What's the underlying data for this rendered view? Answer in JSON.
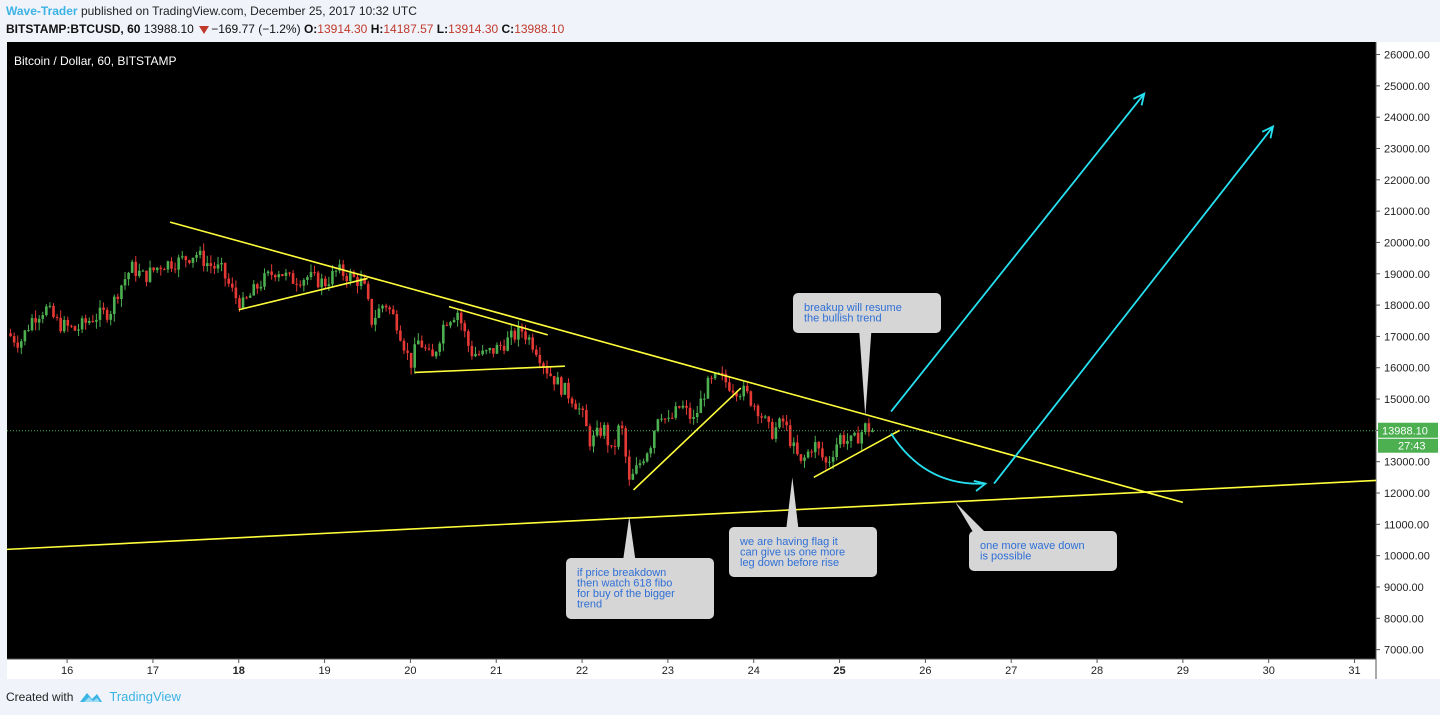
{
  "header": {
    "author": "Wave-Trader",
    "published_text": "published on TradingView.com, December 25, 2017 10:32 UTC",
    "symbol": "BITSTAMP:BTCUSD, 60",
    "last": "13988.10",
    "change": "−169.77 (−1.2%)",
    "o_label": "O:",
    "o_value": "13914.30",
    "h_label": "H:",
    "h_value": "14187.57",
    "l_label": "L:",
    "l_value": "13914.30",
    "c_label": "C:",
    "c_value": "13988.10"
  },
  "footer": {
    "created_with": "Created with",
    "brand": "TradingView"
  },
  "colors": {
    "background": "#000000",
    "bull": "#4caf50",
    "bear": "#e53935",
    "trendline": "#ffff3b",
    "projection": "#26e0f0",
    "price_line": "#4caf50",
    "callout_bg": "#d6d6d6",
    "callout_text": "#2f6fd6"
  },
  "chart_data": {
    "type": "candlestick",
    "title": "Bitcoin / Dollar, 60, BITSTAMP",
    "interval": "60",
    "ylim": [
      6700,
      26400
    ],
    "y_ticks": [
      "26000.00",
      "25000.00",
      "24000.00",
      "23000.00",
      "22000.00",
      "21000.00",
      "20000.00",
      "19000.00",
      "18000.00",
      "17000.00",
      "16000.00",
      "15000.00",
      "14000.00",
      "13000.00",
      "12000.00",
      "11000.00",
      "10000.00",
      "9000.00",
      "8000.00",
      "7000.00"
    ],
    "x_range_days": [
      15.3,
      31.25
    ],
    "x_ticks": [
      {
        "day": 16,
        "label": "16",
        "bold": false
      },
      {
        "day": 17,
        "label": "17",
        "bold": false
      },
      {
        "day": 18,
        "label": "18",
        "bold": true
      },
      {
        "day": 19,
        "label": "19",
        "bold": false
      },
      {
        "day": 20,
        "label": "20",
        "bold": false
      },
      {
        "day": 21,
        "label": "21",
        "bold": false
      },
      {
        "day": 22,
        "label": "22",
        "bold": false
      },
      {
        "day": 23,
        "label": "23",
        "bold": false
      },
      {
        "day": 24,
        "label": "24",
        "bold": false
      },
      {
        "day": 25,
        "label": "25",
        "bold": true
      },
      {
        "day": 26,
        "label": "26",
        "bold": false
      },
      {
        "day": 27,
        "label": "27",
        "bold": false
      },
      {
        "day": 28,
        "label": "28",
        "bold": false
      },
      {
        "day": 29,
        "label": "29",
        "bold": false
      },
      {
        "day": 30,
        "label": "30",
        "bold": false
      },
      {
        "day": 31,
        "label": "31",
        "bold": false
      }
    ],
    "last_price": 13988.1,
    "last_price_label": "13988.10",
    "countdown_label": "27:43",
    "price_path": [
      [
        15.3,
        17100
      ],
      [
        15.45,
        16800
      ],
      [
        15.6,
        17600
      ],
      [
        15.75,
        17900
      ],
      [
        15.9,
        17400
      ],
      [
        16.1,
        17200
      ],
      [
        16.3,
        17600
      ],
      [
        16.5,
        17800
      ],
      [
        16.6,
        18500
      ],
      [
        16.75,
        19200
      ],
      [
        16.9,
        18900
      ],
      [
        17.1,
        19300
      ],
      [
        17.3,
        19400
      ],
      [
        17.5,
        19650
      ],
      [
        17.65,
        19300
      ],
      [
        17.8,
        19100
      ],
      [
        17.95,
        18300
      ],
      [
        18.05,
        18000
      ],
      [
        18.25,
        18700
      ],
      [
        18.45,
        19150
      ],
      [
        18.6,
        18800
      ],
      [
        18.8,
        18900
      ],
      [
        19.0,
        18700
      ],
      [
        19.15,
        19100
      ],
      [
        19.3,
        18900
      ],
      [
        19.45,
        18700
      ],
      [
        19.55,
        17500
      ],
      [
        19.7,
        18100
      ],
      [
        19.85,
        17400
      ],
      [
        20.0,
        16100
      ],
      [
        20.1,
        16900
      ],
      [
        20.25,
        16200
      ],
      [
        20.4,
        17500
      ],
      [
        20.55,
        17800
      ],
      [
        20.7,
        16500
      ],
      [
        20.85,
        16400
      ],
      [
        21.0,
        16600
      ],
      [
        21.15,
        16900
      ],
      [
        21.3,
        17200
      ],
      [
        21.45,
        16700
      ],
      [
        21.6,
        15900
      ],
      [
        21.75,
        15400
      ],
      [
        21.9,
        15000
      ],
      [
        22.0,
        14500
      ],
      [
        22.1,
        13600
      ],
      [
        22.25,
        14100
      ],
      [
        22.35,
        13200
      ],
      [
        22.45,
        14300
      ],
      [
        22.55,
        12300
      ],
      [
        22.7,
        13100
      ],
      [
        22.8,
        13600
      ],
      [
        22.9,
        14700
      ],
      [
        23.0,
        14200
      ],
      [
        23.15,
        14800
      ],
      [
        23.3,
        14300
      ],
      [
        23.45,
        15400
      ],
      [
        23.6,
        15700
      ],
      [
        23.75,
        15400
      ],
      [
        23.9,
        15200
      ],
      [
        24.05,
        14700
      ],
      [
        24.2,
        13900
      ],
      [
        24.35,
        14300
      ],
      [
        24.45,
        13500
      ],
      [
        24.55,
        12900
      ],
      [
        24.7,
        13600
      ],
      [
        24.85,
        12900
      ],
      [
        25.0,
        13800
      ],
      [
        25.15,
        13600
      ],
      [
        25.3,
        14100
      ],
      [
        25.4,
        13988
      ]
    ],
    "trendlines": [
      {
        "name": "main-descending-resistance",
        "color": "trendline",
        "from": [
          17.2,
          20650
        ],
        "to": [
          29.0,
          11700
        ]
      },
      {
        "name": "long-term-rising-support",
        "color": "trendline",
        "from": [
          15.3,
          10200
        ],
        "to": [
          31.25,
          12400
        ]
      },
      {
        "name": "flag1-upper",
        "color": "trendline",
        "from": [
          18.0,
          17850
        ],
        "to": [
          19.5,
          18850
        ]
      },
      {
        "name": "flag2-upper",
        "color": "trendline",
        "from": [
          20.45,
          17950
        ],
        "to": [
          21.6,
          17050
        ]
      },
      {
        "name": "flag2-lower",
        "color": "trendline",
        "from": [
          20.05,
          15850
        ],
        "to": [
          21.8,
          16050
        ]
      },
      {
        "name": "rising-wedge-1",
        "color": "trendline",
        "from": [
          22.6,
          12100
        ],
        "to": [
          23.85,
          15350
        ]
      },
      {
        "name": "rising-wedge-2",
        "color": "trendline",
        "from": [
          24.7,
          12500
        ],
        "to": [
          25.7,
          14000
        ]
      }
    ],
    "projections": [
      {
        "name": "projection-arrow-1",
        "color": "projection",
        "from": [
          25.6,
          14600
        ],
        "to": [
          28.55,
          24750
        ]
      },
      {
        "name": "projection-arrow-2",
        "color": "projection",
        "from": [
          26.8,
          12300
        ],
        "to": [
          30.05,
          23700
        ]
      },
      {
        "name": "projection-curve",
        "color": "projection",
        "points": [
          [
            25.6,
            13900
          ],
          [
            26.0,
            12200
          ],
          [
            26.7,
            12300
          ]
        ]
      }
    ],
    "callouts": [
      {
        "name": "callout-breakup",
        "lines": [
          "breakup will resume",
          "the bullish trend"
        ],
        "anchor": [
          25.3,
          14450
        ]
      },
      {
        "name": "callout-flag",
        "lines": [
          "we are having flag it",
          "can give us one more",
          "leg down before rise"
        ],
        "anchor": [
          24.45,
          12500
        ]
      },
      {
        "name": "callout-fibo",
        "lines": [
          "if price breakdown",
          "then watch 618 fibo",
          "for buy of the bigger",
          "trend"
        ],
        "anchor": [
          22.55,
          11250
        ]
      },
      {
        "name": "callout-wave",
        "lines": [
          "one more wave down",
          "is possible"
        ],
        "anchor": [
          26.35,
          11700
        ]
      }
    ]
  }
}
